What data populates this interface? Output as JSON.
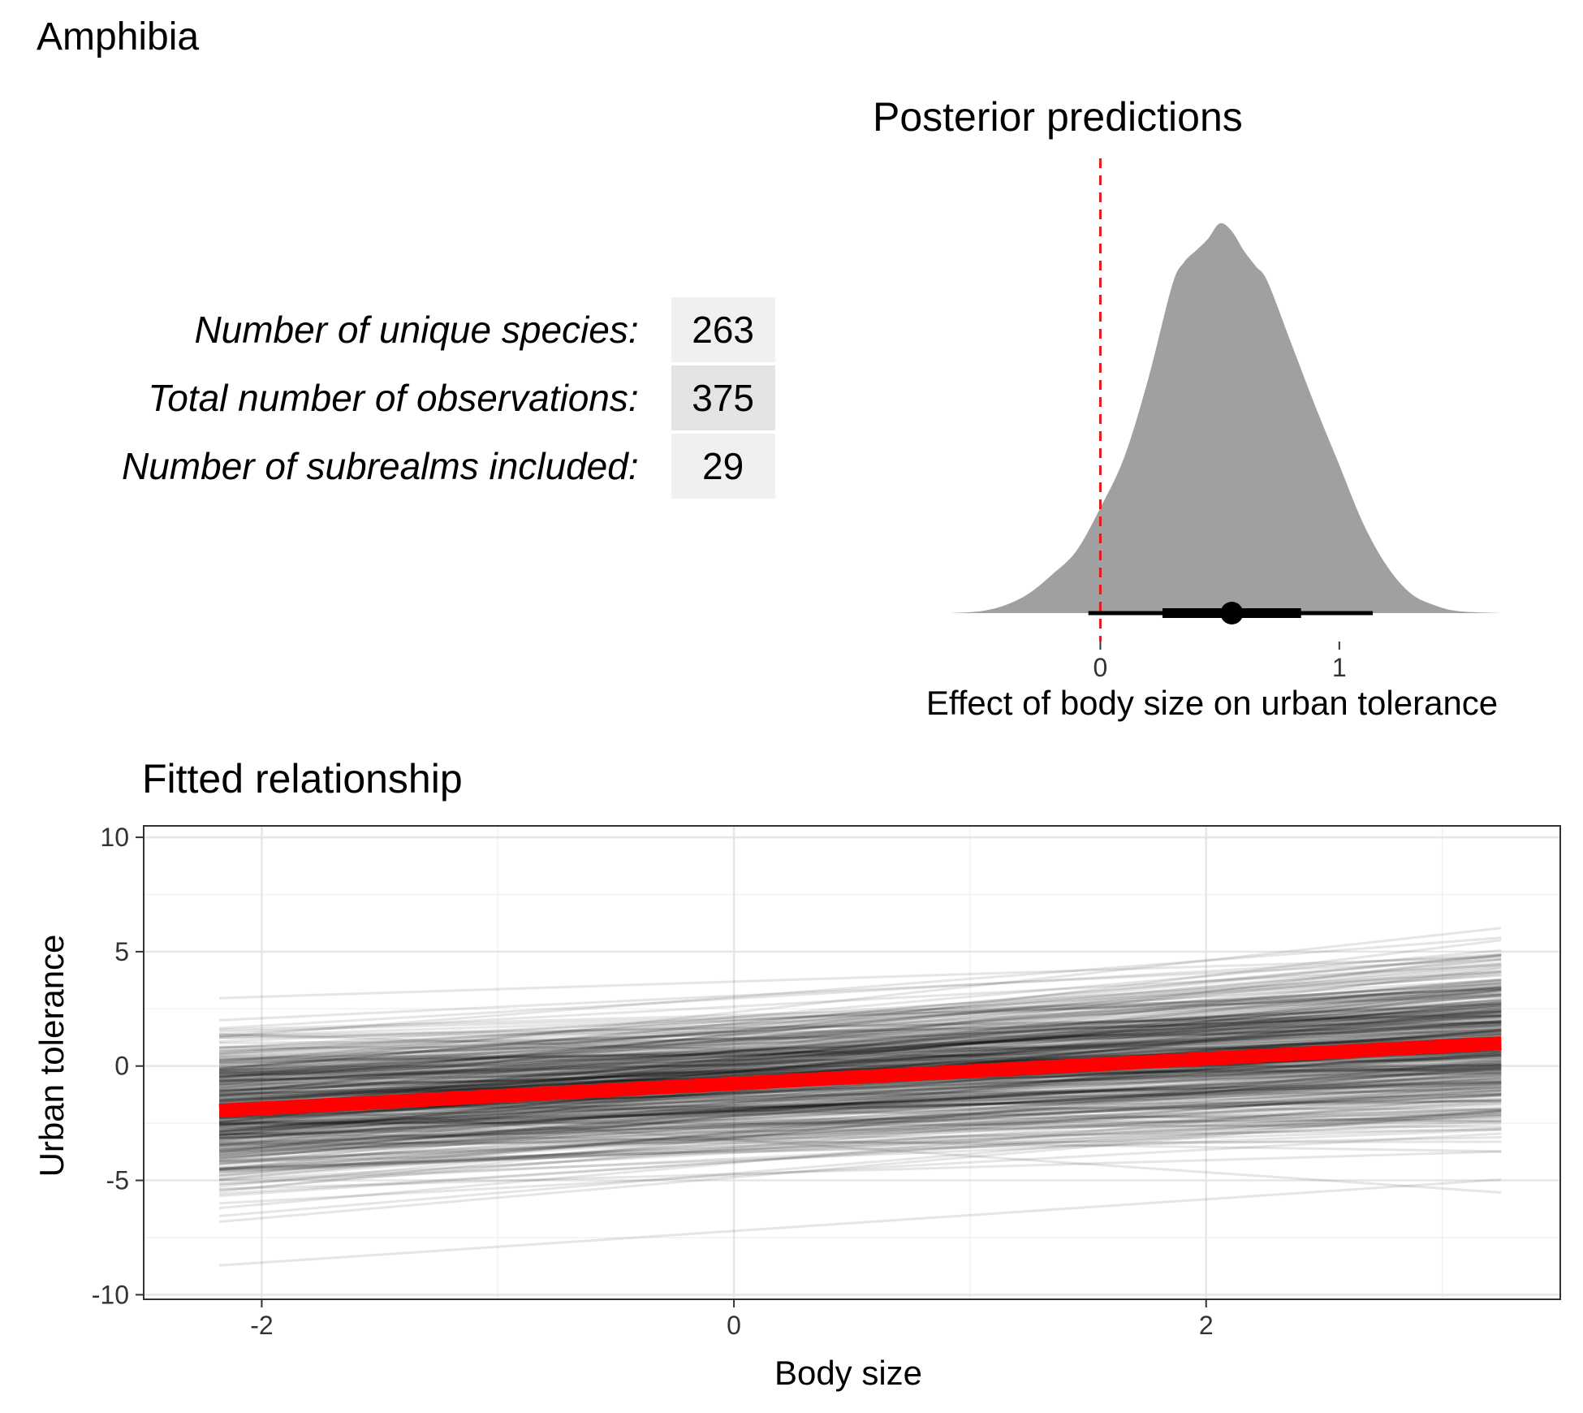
{
  "figure": {
    "title": "Amphibia",
    "stats": [
      {
        "label": "Number of unique species:",
        "value": "263"
      },
      {
        "label": "Total number of observations:",
        "value": "375"
      },
      {
        "label": "Number of subrealms included:",
        "value": "29"
      }
    ]
  },
  "chart_data": [
    {
      "type": "area",
      "title": "Posterior predictions",
      "xlabel": "Effect of body size on urban tolerance",
      "ylabel": "",
      "xlim": [
        -0.63,
        1.68
      ],
      "xticks": [
        0,
        1
      ],
      "grid": false,
      "reference_line": {
        "x": 0,
        "color": "#e41a1c",
        "style": "dashed"
      },
      "density": {
        "x": [
          -0.63,
          -0.5,
          -0.4,
          -0.3,
          -0.2,
          -0.1,
          0.0,
          0.1,
          0.2,
          0.3,
          0.35,
          0.4,
          0.45,
          0.5,
          0.55,
          0.6,
          0.65,
          0.7,
          0.8,
          0.9,
          1.0,
          1.1,
          1.2,
          1.3,
          1.4,
          1.5,
          1.68
        ],
        "y": [
          0.0,
          0.005,
          0.02,
          0.05,
          0.1,
          0.16,
          0.27,
          0.4,
          0.6,
          0.84,
          0.9,
          0.93,
          0.96,
          1.0,
          0.98,
          0.93,
          0.89,
          0.85,
          0.69,
          0.53,
          0.38,
          0.23,
          0.12,
          0.05,
          0.02,
          0.005,
          0.0
        ],
        "color": "#a0a0a0"
      },
      "point_interval": {
        "point": 0.55,
        "inner": [
          0.26,
          0.84
        ],
        "outer": [
          -0.05,
          1.14
        ]
      }
    },
    {
      "type": "line",
      "title": "Fitted relationship",
      "xlabel": "Body size",
      "ylabel": "Urban tolerance",
      "xlim": [
        -2.5,
        3.5
      ],
      "ylim": [
        -10.2,
        10.5
      ],
      "xticks": [
        -2,
        0,
        2
      ],
      "yticks": [
        -10,
        -5,
        0,
        5,
        10
      ],
      "grid": true,
      "x_range": [
        -2.18,
        3.25
      ],
      "posterior_draws": {
        "count": 400,
        "color": "#000000",
        "opacity": 0.1,
        "intercept_mean": -0.75,
        "intercept_sd": 1.6,
        "slope_mean": 0.55,
        "slope_sd": 0.3
      },
      "fitted_line": {
        "x": [
          -2.18,
          3.25
        ],
        "y": [
          -1.95,
          1.0
        ],
        "color": "#ff0000"
      }
    }
  ]
}
